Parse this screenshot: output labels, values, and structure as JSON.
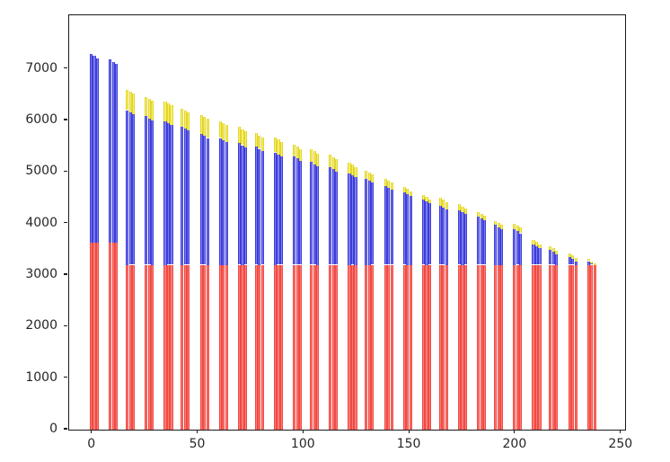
{
  "figure": {
    "background": "#ffffff",
    "title": ""
  },
  "axes": {
    "spine_color": "#1a1a1a",
    "tick_label_color": "#262626",
    "grid": false
  },
  "chart_data": {
    "type": "bar",
    "variant": "stacked-clustered",
    "title": "",
    "xlabel": "",
    "ylabel": "",
    "legend": null,
    "grid": false,
    "x_ticks": [
      0,
      50,
      100,
      150,
      200,
      250
    ],
    "y_ticks": [
      0,
      1000,
      2000,
      3000,
      4000,
      5000,
      6000,
      7000
    ],
    "xlim": [
      -10.9,
      251.8
    ],
    "ylim": [
      0,
      8040
    ],
    "bars_per_cluster": 3,
    "within_cluster_top_offsets": [
      40,
      0,
      -40
    ],
    "series": [
      {
        "name": "red-bottom-segment",
        "color": "#f4504a"
      },
      {
        "name": "blue-middle-segment",
        "color": "#4848e0"
      },
      {
        "name": "yellow-top-segment",
        "color": "#f0e43c"
      }
    ],
    "clusters": [
      {
        "x": 1,
        "red": 3620,
        "blue_top": 7250,
        "total": 7250
      },
      {
        "x": 10,
        "red": 3620,
        "blue_top": 7140,
        "total": 7140
      },
      {
        "x": 18,
        "red": 3200,
        "blue_top": 6160,
        "total": 6560
      },
      {
        "x": 27,
        "red": 3200,
        "blue_top": 6040,
        "total": 6420
      },
      {
        "x": 36,
        "red": 3200,
        "blue_top": 5950,
        "total": 6330
      },
      {
        "x": 44,
        "red": 3200,
        "blue_top": 5840,
        "total": 6190
      },
      {
        "x": 53,
        "red": 3200,
        "blue_top": 5700,
        "total": 6070
      },
      {
        "x": 62,
        "red": 3200,
        "blue_top": 5620,
        "total": 5950
      },
      {
        "x": 71,
        "red": 3200,
        "blue_top": 5520,
        "total": 5830
      },
      {
        "x": 79,
        "red": 3200,
        "blue_top": 5450,
        "total": 5710
      },
      {
        "x": 88,
        "red": 3200,
        "blue_top": 5340,
        "total": 5630
      },
      {
        "x": 97,
        "red": 3200,
        "blue_top": 5260,
        "total": 5490
      },
      {
        "x": 105,
        "red": 3200,
        "blue_top": 5150,
        "total": 5400
      },
      {
        "x": 114,
        "red": 3200,
        "blue_top": 5050,
        "total": 5290
      },
      {
        "x": 123,
        "red": 3200,
        "blue_top": 4940,
        "total": 5140
      },
      {
        "x": 131,
        "red": 3200,
        "blue_top": 4830,
        "total": 4990
      },
      {
        "x": 140,
        "red": 3200,
        "blue_top": 4690,
        "total": 4830
      },
      {
        "x": 149,
        "red": 3200,
        "blue_top": 4570,
        "total": 4670
      },
      {
        "x": 158,
        "red": 3200,
        "blue_top": 4430,
        "total": 4510
      },
      {
        "x": 166,
        "red": 3200,
        "blue_top": 4310,
        "total": 4460
      },
      {
        "x": 175,
        "red": 3200,
        "blue_top": 4220,
        "total": 4330
      },
      {
        "x": 184,
        "red": 3200,
        "blue_top": 4100,
        "total": 4190
      },
      {
        "x": 192,
        "red": 3200,
        "blue_top": 3930,
        "total": 4010
      },
      {
        "x": 201,
        "red": 3200,
        "blue_top": 3850,
        "total": 3960
      },
      {
        "x": 210,
        "red": 3200,
        "blue_top": 3560,
        "total": 3640
      },
      {
        "x": 218,
        "red": 3200,
        "blue_top": 3450,
        "total": 3520
      },
      {
        "x": 227,
        "red": 3200,
        "blue_top": 3310,
        "total": 3380
      },
      {
        "x": 236,
        "red": 3200,
        "blue_top": 3230,
        "total": 3270
      }
    ]
  }
}
